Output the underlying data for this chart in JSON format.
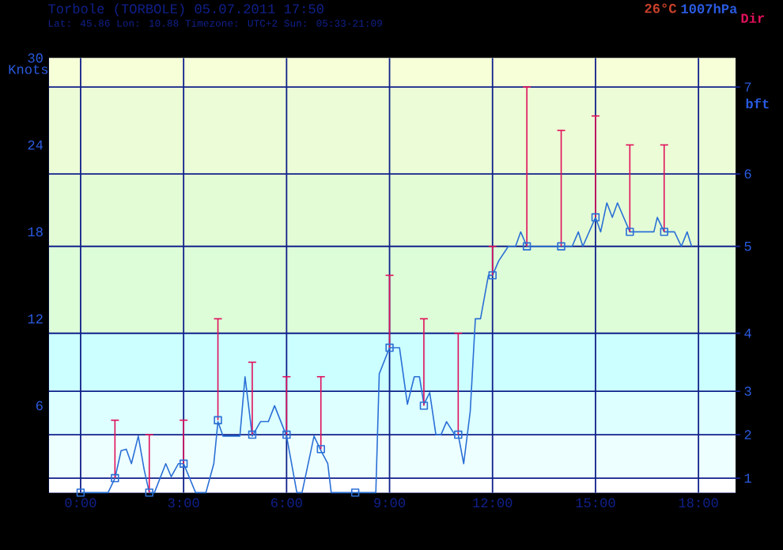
{
  "chart_data": {
    "type": "line",
    "title": "Torbole (TORBOLE) 05.07.2011 17:50",
    "subtitle": "Lat: 45.86 Lon: 10.88 Timezone: UTC+2 Sun: 05:33-21:09",
    "annotations": [
      "26°C",
      "1007hPa",
      "Dir",
      "bft",
      {
        "text": "1",
        "y": 1
      },
      {
        "text": "2",
        "y": 4
      },
      {
        "text": "3",
        "y": 7
      },
      {
        "text": "4",
        "y": 11
      },
      {
        "text": "5",
        "y": 17
      },
      {
        "text": "6",
        "y": 22
      },
      {
        "text": "7",
        "y": 28
      }
    ],
    "ylabel": "Knots",
    "xlim": [
      -0.92,
      19.08
    ],
    "ylim": [
      0,
      30
    ],
    "xticks": [
      {
        "value": 0,
        "label": "0:00"
      },
      {
        "value": 3,
        "label": "3:00"
      },
      {
        "value": 6,
        "label": "6:00"
      },
      {
        "value": 9,
        "label": "9:00"
      },
      {
        "value": 12,
        "label": "12:00"
      },
      {
        "value": 15,
        "label": "15:00"
      },
      {
        "value": 18,
        "label": "18:00"
      }
    ],
    "yticks": [
      6,
      12,
      18,
      24,
      30
    ],
    "ref_lines": [
      {
        "axis": "y",
        "value": 1
      },
      {
        "axis": "y",
        "value": 4
      },
      {
        "axis": "y",
        "value": 7
      },
      {
        "axis": "y",
        "value": 11
      },
      {
        "axis": "y",
        "value": 17
      },
      {
        "axis": "y",
        "value": 22
      },
      {
        "axis": "y",
        "value": 28
      }
    ],
    "grid": "x",
    "bands": [
      {
        "axis": "y",
        "from": 1,
        "to": 4,
        "color": "#eeffff"
      },
      {
        "axis": "y",
        "from": 4,
        "to": 7,
        "color": "#ddffff"
      },
      {
        "axis": "y",
        "from": 7,
        "to": 11,
        "color": "#ccffff"
      },
      {
        "axis": "y",
        "from": 11,
        "to": 17,
        "color": "#ddfcd8"
      },
      {
        "axis": "y",
        "from": 17,
        "to": 22,
        "color": "#e4fcd6"
      },
      {
        "axis": "y",
        "from": 22,
        "to": 28,
        "color": "#ecfcd6"
      },
      {
        "axis": "y",
        "from": 28,
        "to": 30,
        "color": "#f6ffd8"
      }
    ],
    "series": [
      {
        "color": "#2a6fd6",
        "marker": "none",
        "x": [
          0,
          0.8,
          1,
          1.18,
          1.33,
          1.48,
          1.68,
          1.85,
          2,
          2.15,
          2.48,
          2.64,
          2.85,
          3,
          3.35,
          3.65,
          3.88,
          4,
          4.15,
          4.64,
          4.79,
          5,
          5.24,
          5.47,
          5.65,
          6,
          6.3,
          6.45,
          6.8,
          7,
          7.2,
          7.3,
          8.6,
          8.7,
          9,
          9.29,
          9.52,
          9.72,
          9.87,
          10,
          10.17,
          10.35,
          10.5,
          10.66,
          10.9,
          11,
          11.16,
          11.35,
          11.5,
          11.65,
          11.88,
          12,
          12.18,
          12.46,
          12.67,
          12.82,
          13,
          14,
          14.32,
          14.5,
          14.63,
          15,
          15.15,
          15.33,
          15.49,
          15.64,
          16,
          16.7,
          16.8,
          17,
          17.3,
          17.5,
          17.67,
          17.8
        ],
        "values": [
          0,
          0,
          1,
          2.9,
          3,
          2,
          3.9,
          1.6,
          0,
          0,
          2,
          1.1,
          2,
          2,
          0,
          0,
          2,
          4.9,
          3.9,
          3.9,
          8,
          3.9,
          4.9,
          4.9,
          6,
          3.9,
          0,
          0,
          3.9,
          2.9,
          2,
          0,
          0,
          8.2,
          10,
          10,
          6.1,
          8,
          8,
          6.1,
          6.9,
          4,
          4,
          4.9,
          4,
          4,
          2,
          5.6,
          12,
          12,
          15,
          15,
          16,
          17,
          17,
          18,
          17,
          17,
          17,
          18,
          17,
          19,
          18,
          20,
          19,
          20,
          18,
          18,
          19,
          18,
          18,
          17,
          18,
          17
        ]
      },
      {
        "type": "scatter",
        "color": "#2a6fd6",
        "marker": "square",
        "x": [
          0,
          1,
          2,
          3,
          4,
          5,
          6,
          7,
          8,
          9,
          10,
          11,
          12,
          13,
          14,
          15,
          16,
          17
        ],
        "values": [
          0,
          1,
          0,
          2,
          5,
          4,
          4,
          3,
          0,
          10,
          6,
          4,
          15,
          17,
          17,
          19,
          18,
          18
        ],
        "errors": [
          null,
          [
            1,
            5
          ],
          [
            0,
            4
          ],
          [
            2,
            5
          ],
          [
            5,
            12
          ],
          [
            4,
            9
          ],
          [
            4,
            8
          ],
          [
            3,
            8
          ],
          null,
          [
            10,
            15
          ],
          [
            6,
            12
          ],
          [
            4,
            11
          ],
          [
            15,
            17
          ],
          [
            17,
            28
          ],
          [
            17,
            25
          ],
          [
            19,
            26
          ],
          [
            18,
            24
          ],
          [
            18,
            24
          ]
        ]
      }
    ]
  }
}
